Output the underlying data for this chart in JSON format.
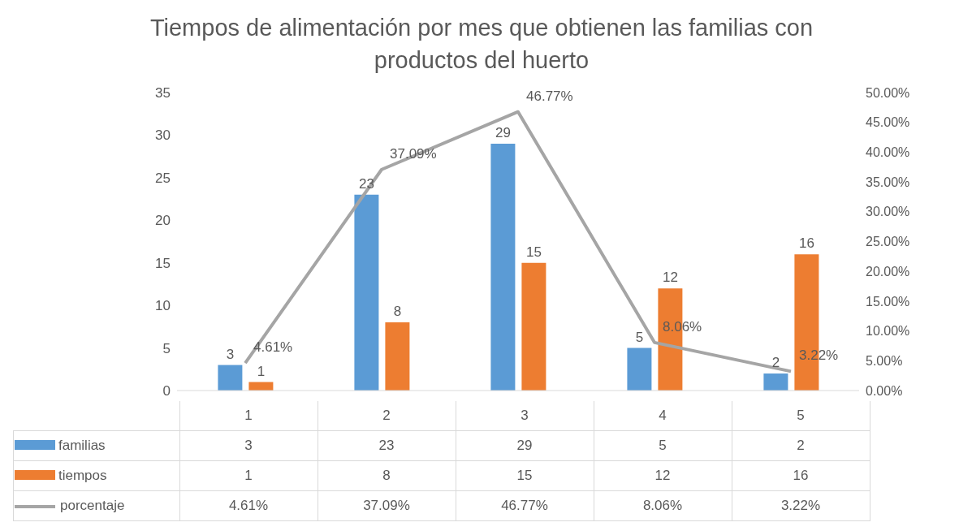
{
  "chart_data": {
    "type": "bar",
    "title": "Tiempos de alimentación por mes que obtienen las familias con productos del huerto",
    "categories": [
      "1",
      "2",
      "3",
      "4",
      "5"
    ],
    "series": [
      {
        "name": "familias",
        "color": "#5b9bd5",
        "values": [
          3,
          23,
          29,
          5,
          2
        ],
        "value_labels": [
          "3",
          "23",
          "29",
          "5",
          "2"
        ]
      },
      {
        "name": "tiempos",
        "color": "#ed7d31",
        "values": [
          1,
          8,
          15,
          12,
          16
        ],
        "value_labels": [
          "1",
          "8",
          "15",
          "12",
          "16"
        ]
      },
      {
        "name": "porcentaje",
        "type": "line",
        "axis": "y2",
        "color": "#a5a5a5",
        "values": [
          4.61,
          37.09,
          46.77,
          8.06,
          3.22
        ],
        "value_labels": [
          "4.61%",
          "37.09%",
          "46.77%",
          "8.06%",
          "3.22%"
        ]
      }
    ],
    "ylim": [
      0,
      35
    ],
    "yticks": [
      0,
      5,
      10,
      15,
      20,
      25,
      30,
      35
    ],
    "y2lim": [
      0,
      50
    ],
    "y2ticks": [
      {
        "value": 0,
        "label": "0.00%"
      },
      {
        "value": 5,
        "label": "5.00%"
      },
      {
        "value": 10,
        "label": "10.00%"
      },
      {
        "value": 15,
        "label": "15.00%"
      },
      {
        "value": 20,
        "label": "20.00%"
      },
      {
        "value": 25,
        "label": "25.00%"
      },
      {
        "value": 30,
        "label": "30.00%"
      },
      {
        "value": 35,
        "label": "35.00%"
      },
      {
        "value": 40,
        "label": "40.00%"
      },
      {
        "value": 45,
        "label": "45.00%"
      },
      {
        "value": 50,
        "label": "50.00%"
      }
    ],
    "marker": "none",
    "line_style": "solid",
    "legend": "bottom left"
  }
}
